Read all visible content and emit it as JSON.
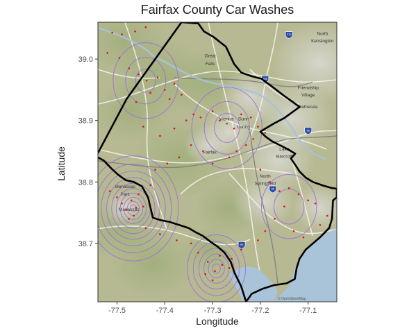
{
  "title": "Fairfax County Car Washes",
  "x_axis": {
    "label": "Longitude",
    "ticks": [
      "-77.5",
      "-77.4",
      "-77.3",
      "-77.2",
      "-77.1"
    ],
    "tick_values": [
      -77.5,
      -77.4,
      -77.3,
      -77.2,
      -77.1
    ],
    "range": [
      -77.54,
      -77.04
    ]
  },
  "y_axis": {
    "label": "Latitude",
    "ticks": [
      "38.7",
      "38.8",
      "38.9",
      "39.0"
    ],
    "tick_values": [
      38.7,
      38.8,
      38.9,
      39.0
    ],
    "range": [
      38.605,
      39.06
    ]
  },
  "basemap": {
    "place_labels": [
      {
        "text": "Great",
        "lon": -77.305,
        "lat": 39.003
      },
      {
        "text": "Falls",
        "lon": -77.305,
        "lat": 38.99
      },
      {
        "text": "North",
        "lon": -77.07,
        "lat": 39.039
      },
      {
        "text": "Kensington",
        "lon": -77.07,
        "lat": 39.027
      },
      {
        "text": "Friendship",
        "lon": -77.1,
        "lat": 38.951
      },
      {
        "text": "Village",
        "lon": -77.1,
        "lat": 38.939
      },
      {
        "text": "Bethesda",
        "lon": -77.1,
        "lat": 38.92
      },
      {
        "text": "Vienna",
        "lon": -77.271,
        "lat": 38.9
      },
      {
        "text": "Dunn",
        "lon": -77.235,
        "lat": 38.9
      },
      {
        "text": "Loring",
        "lon": -77.235,
        "lat": 38.887
      },
      {
        "text": "Fairfax",
        "lon": -77.306,
        "lat": 38.846
      },
      {
        "text": "Lake",
        "lon": -77.15,
        "lat": 38.851
      },
      {
        "text": "Barcroft",
        "lon": -77.15,
        "lat": 38.839
      },
      {
        "text": "North",
        "lon": -77.19,
        "lat": 38.807
      },
      {
        "text": "Springfield",
        "lon": -77.19,
        "lat": 38.795
      },
      {
        "text": "Manassas",
        "lon": -77.483,
        "lat": 38.79
      },
      {
        "text": "Park",
        "lon": -77.483,
        "lat": 38.778
      },
      {
        "text": "Manassas",
        "lon": -77.475,
        "lat": 38.753
      }
    ],
    "interstate_shields": [
      {
        "label": "270",
        "lon": -77.14,
        "lat": 39.04
      },
      {
        "label": "495",
        "lon": -77.19,
        "lat": 38.968
      },
      {
        "label": "66",
        "lon": -77.1,
        "lat": 38.884
      },
      {
        "label": "95",
        "lon": -77.174,
        "lat": 38.789
      },
      {
        "label": "95",
        "lon": -77.239,
        "lat": 38.698
      }
    ],
    "attribution": "© OpenStreetMap"
  },
  "county_boundary": [
    [
      -77.54,
      38.847
    ],
    [
      -77.48,
      38.935
    ],
    [
      -77.365,
      39.06
    ],
    [
      -77.33,
      39.058
    ],
    [
      -77.318,
      39.045
    ],
    [
      -77.298,
      39.036
    ],
    [
      -77.272,
      39.02
    ],
    [
      -77.255,
      38.992
    ],
    [
      -77.24,
      38.978
    ],
    [
      -77.218,
      38.972
    ],
    [
      -77.198,
      38.968
    ],
    [
      -77.175,
      38.955
    ],
    [
      -77.15,
      38.94
    ],
    [
      -77.132,
      38.93
    ],
    [
      -77.118,
      38.922
    ],
    [
      -77.15,
      38.904
    ],
    [
      -77.172,
      38.895
    ],
    [
      -77.2,
      38.882
    ],
    [
      -77.188,
      38.873
    ],
    [
      -77.175,
      38.866
    ],
    [
      -77.157,
      38.859
    ],
    [
      -77.142,
      38.853
    ],
    [
      -77.127,
      38.846
    ],
    [
      -77.136,
      38.838
    ],
    [
      -77.128,
      38.829
    ],
    [
      -77.118,
      38.817
    ],
    [
      -77.105,
      38.807
    ],
    [
      -77.09,
      38.8
    ],
    [
      -77.068,
      38.794
    ],
    [
      -77.05,
      38.79
    ],
    [
      -77.04,
      38.789
    ],
    [
      -77.04,
      38.775
    ],
    [
      -77.048,
      38.77
    ],
    [
      -77.05,
      38.74
    ],
    [
      -77.056,
      38.725
    ],
    [
      -77.075,
      38.71
    ],
    [
      -77.09,
      38.7
    ],
    [
      -77.105,
      38.69
    ],
    [
      -77.118,
      38.675
    ],
    [
      -77.124,
      38.66
    ],
    [
      -77.128,
      38.642
    ],
    [
      -77.145,
      38.635
    ],
    [
      -77.172,
      38.632
    ],
    [
      -77.196,
      38.626
    ],
    [
      -77.218,
      38.618
    ],
    [
      -77.23,
      38.605
    ],
    [
      -77.24,
      38.63
    ],
    [
      -77.254,
      38.652
    ],
    [
      -77.262,
      38.67
    ],
    [
      -77.275,
      38.685
    ],
    [
      -77.29,
      38.695
    ],
    [
      -77.305,
      38.703
    ],
    [
      -77.32,
      38.712
    ],
    [
      -77.335,
      38.718
    ],
    [
      -77.35,
      38.725
    ],
    [
      -77.37,
      38.73
    ],
    [
      -77.39,
      38.735
    ],
    [
      -77.41,
      38.738
    ],
    [
      -77.425,
      38.742
    ],
    [
      -77.43,
      38.758
    ],
    [
      -77.435,
      38.775
    ],
    [
      -77.448,
      38.793
    ],
    [
      -77.465,
      38.8
    ],
    [
      -77.482,
      38.803
    ],
    [
      -77.498,
      38.812
    ],
    [
      -77.512,
      38.822
    ],
    [
      -77.528,
      38.835
    ],
    [
      -77.54,
      38.84
    ]
  ],
  "car_washes": [
    [
      -77.51,
      39.043
    ],
    [
      -77.49,
      39.04
    ],
    [
      -77.462,
      39.045
    ],
    [
      -77.44,
      39.052
    ],
    [
      -77.52,
      39.01
    ],
    [
      -77.495,
      39.002
    ],
    [
      -77.475,
      38.985
    ],
    [
      -77.455,
      38.975
    ],
    [
      -77.438,
      38.965
    ],
    [
      -77.415,
      38.97
    ],
    [
      -77.4,
      38.95
    ],
    [
      -77.38,
      38.96
    ],
    [
      -77.365,
      38.942
    ],
    [
      -77.39,
      38.935
    ],
    [
      -77.43,
      38.945
    ],
    [
      -77.46,
      38.93
    ],
    [
      -77.445,
      38.89
    ],
    [
      -77.41,
      38.875
    ],
    [
      -77.38,
      38.887
    ],
    [
      -77.355,
      38.9
    ],
    [
      -77.34,
      38.91
    ],
    [
      -77.325,
      38.905
    ],
    [
      -77.3,
      38.915
    ],
    [
      -77.285,
      38.9
    ],
    [
      -77.27,
      38.895
    ],
    [
      -77.255,
      38.887
    ],
    [
      -77.24,
      38.91
    ],
    [
      -77.22,
      38.905
    ],
    [
      -77.205,
      38.89
    ],
    [
      -77.19,
      38.88
    ],
    [
      -77.215,
      38.87
    ],
    [
      -77.23,
      38.86
    ],
    [
      -77.25,
      38.85
    ],
    [
      -77.265,
      38.84
    ],
    [
      -77.3,
      38.83
    ],
    [
      -77.32,
      38.85
    ],
    [
      -77.345,
      38.86
    ],
    [
      -77.37,
      38.84
    ],
    [
      -77.395,
      38.83
    ],
    [
      -77.42,
      38.82
    ],
    [
      -77.2,
      38.82
    ],
    [
      -77.18,
      38.8
    ],
    [
      -77.16,
      38.785
    ],
    [
      -77.14,
      38.79
    ],
    [
      -77.12,
      38.78
    ],
    [
      -77.1,
      38.77
    ],
    [
      -77.085,
      38.765
    ],
    [
      -77.15,
      38.76
    ],
    [
      -77.17,
      38.74
    ],
    [
      -77.13,
      38.72
    ],
    [
      -77.11,
      38.71
    ],
    [
      -77.075,
      38.73
    ],
    [
      -77.06,
      38.745
    ],
    [
      -77.19,
      38.72
    ],
    [
      -77.205,
      38.705
    ],
    [
      -77.24,
      38.69
    ],
    [
      -77.26,
      38.675
    ],
    [
      -77.28,
      38.665
    ],
    [
      -77.295,
      38.655
    ],
    [
      -77.3,
      38.64
    ],
    [
      -77.315,
      38.65
    ],
    [
      -77.31,
      38.67
    ],
    [
      -77.285,
      38.68
    ],
    [
      -77.265,
      38.66
    ],
    [
      -77.33,
      38.685
    ],
    [
      -77.345,
      38.7
    ],
    [
      -77.375,
      38.705
    ],
    [
      -77.41,
      38.715
    ],
    [
      -77.44,
      38.725
    ],
    [
      -77.465,
      38.745
    ],
    [
      -77.48,
      38.755
    ],
    [
      -77.49,
      38.765
    ],
    [
      -77.5,
      38.775
    ],
    [
      -77.515,
      38.785
    ],
    [
      -77.47,
      38.77
    ],
    [
      -77.455,
      38.78
    ],
    [
      -77.46,
      38.758
    ],
    [
      -77.475,
      38.74
    ],
    [
      -77.445,
      38.76
    ],
    [
      -77.43,
      38.795
    ]
  ],
  "density_centers": [
    {
      "lon": -77.466,
      "lat": 38.757,
      "radii": [
        0.006,
        0.012,
        0.019,
        0.026,
        0.034,
        0.043,
        0.053,
        0.064,
        0.076,
        0.09
      ]
    },
    {
      "lon": -77.292,
      "lat": 38.659,
      "radii": [
        0.008,
        0.016,
        0.025,
        0.035,
        0.046,
        0.058
      ]
    },
    {
      "lon": -77.27,
      "lat": 38.888,
      "radii": [
        0.025,
        0.045,
        0.07
      ]
    },
    {
      "lon": -77.44,
      "lat": 38.965,
      "radii": [
        0.02,
        0.04,
        0.065
      ]
    },
    {
      "lon": -77.14,
      "lat": 38.76,
      "radii": [
        0.03,
        0.055
      ]
    }
  ],
  "colors": {
    "boundary": "#000000",
    "contour": "#9b6bdc",
    "point": "#e01010",
    "water": "#a9c3d9"
  }
}
